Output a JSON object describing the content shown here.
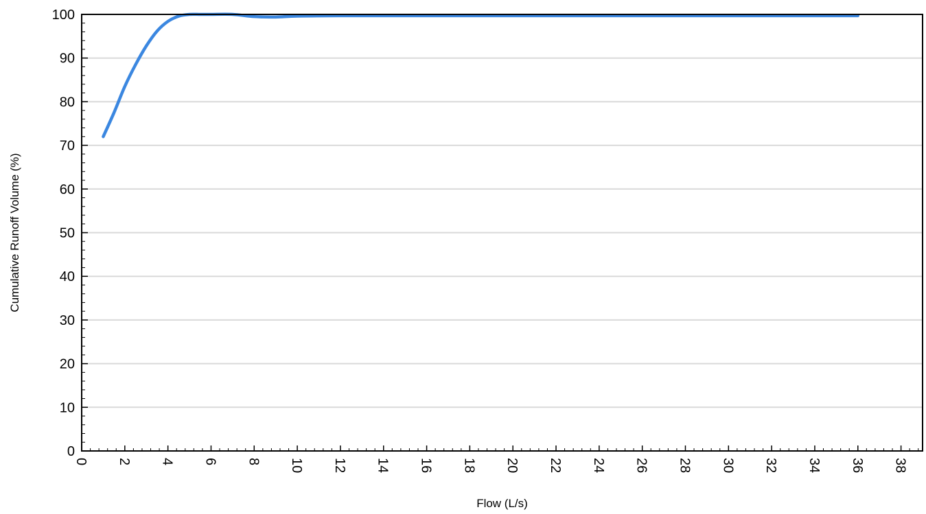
{
  "chart_data": {
    "type": "line",
    "title": "",
    "xlabel": "Flow (L/s)",
    "ylabel": "Cumulative Runoff Volume (%)",
    "xlim": [
      0,
      39
    ],
    "ylim": [
      0,
      100
    ],
    "x_ticks": [
      0,
      2,
      4,
      6,
      8,
      10,
      12,
      14,
      16,
      18,
      20,
      22,
      24,
      26,
      28,
      30,
      32,
      34,
      36,
      38
    ],
    "y_ticks": [
      0,
      10,
      20,
      30,
      40,
      50,
      60,
      70,
      80,
      90,
      100
    ],
    "grid": "horizontal",
    "line_color": "#3b87e0",
    "series": [
      {
        "x": [
          1.0,
          1.5,
          2.0,
          2.5,
          3.0,
          3.5,
          4.0,
          4.5,
          5.0,
          5.5,
          6.0,
          7.0,
          8.0,
          9.0,
          10.0,
          12.0,
          16.0,
          20.0,
          24.0,
          28.0,
          32.0,
          36.0
        ],
        "values": [
          72.0,
          77.5,
          83.5,
          88.5,
          92.8,
          96.2,
          98.4,
          99.6,
          100.0,
          100.0,
          100.0,
          100.0,
          99.5,
          99.4,
          99.6,
          99.7,
          99.7,
          99.7,
          99.7,
          99.7,
          99.7,
          99.7
        ]
      }
    ]
  }
}
